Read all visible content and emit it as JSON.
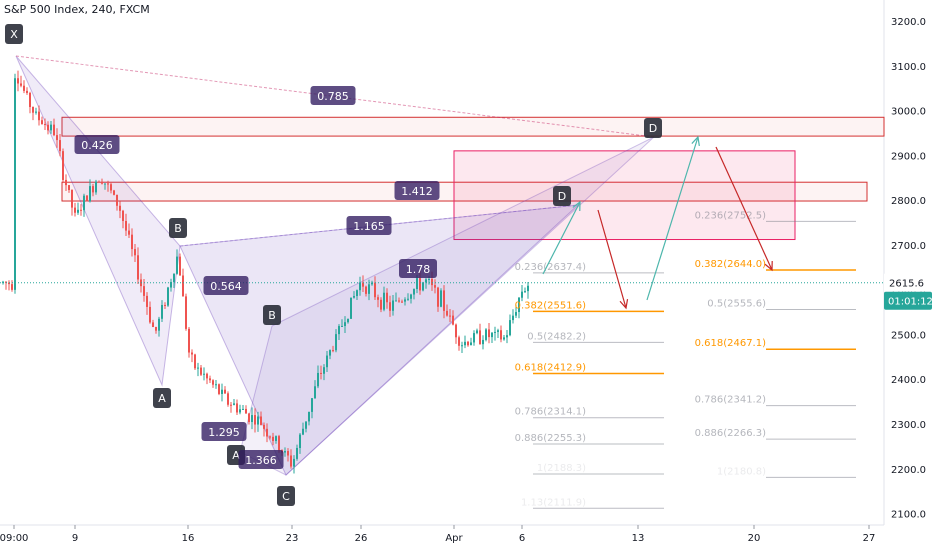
{
  "header": {
    "title": "S&P 500 Index, 240, FXCM"
  },
  "price_axis": {
    "ticks": [
      "3200.0",
      "3100.0",
      "3000.0",
      "2900.0",
      "2800.0",
      "2700.0",
      "2600.0",
      "2500.0",
      "2400.0",
      "2300.0",
      "2200.0",
      "2100.0"
    ],
    "current_price": "2615.6",
    "countdown": "01:01:12"
  },
  "time_axis": {
    "ticks": [
      "09:00",
      "9",
      "16",
      "23",
      "26",
      "Apr",
      "6",
      "13",
      "20",
      "27"
    ]
  },
  "colors": {
    "up": "#26a69a",
    "down": "#ef5350",
    "fib_orange": "#ff9800",
    "pattern_fill": "#673ab7",
    "zone_red": "#d32f2f",
    "arrow_up": "#4db6ac",
    "arrow_down": "#c62828"
  },
  "chart_data": {
    "type": "candlestick",
    "title": "S&P 500 Index, 240, FXCM",
    "ylim": [
      2100,
      3200
    ],
    "close_path": [
      {
        "x": "Mar 2",
        "y": 3090
      },
      {
        "x": "Mar 3",
        "y": 2990
      },
      {
        "x": "Mar 5",
        "y": 2950
      },
      {
        "x": "Mar 6",
        "y": 2870
      },
      {
        "x": "Mar 9",
        "y": 2760
      },
      {
        "x": "Mar 10",
        "y": 2860
      },
      {
        "x": "Mar 11",
        "y": 2780
      },
      {
        "x": "Mar 12",
        "y": 2500
      },
      {
        "x": "Mar 13",
        "y": 2680
      },
      {
        "x": "Mar 16",
        "y": 2440
      },
      {
        "x": "Mar 18",
        "y": 2350
      },
      {
        "x": "Mar 20",
        "y": 2300
      },
      {
        "x": "Mar 23",
        "y": 2210
      },
      {
        "x": "Mar 24",
        "y": 2400
      },
      {
        "x": "Mar 26",
        "y": 2620
      },
      {
        "x": "Mar 27",
        "y": 2560
      },
      {
        "x": "Mar 30",
        "y": 2620
      },
      {
        "x": "Mar 31",
        "y": 2580
      },
      {
        "x": "Apr 1",
        "y": 2480
      },
      {
        "x": "Apr 2",
        "y": 2500
      },
      {
        "x": "Apr 3",
        "y": 2490
      },
      {
        "x": "Apr 6",
        "y": 2600
      },
      {
        "x": "Apr 7",
        "y": 2615.6
      }
    ],
    "pattern_points": [
      {
        "label": "X"
      },
      {
        "label": "A"
      },
      {
        "label": "B"
      },
      {
        "label": "C"
      },
      {
        "label": "D"
      },
      {
        "label": "A"
      },
      {
        "label": "B"
      },
      {
        "label": "D"
      }
    ],
    "pattern_ratios": [
      "0.785",
      "0.426",
      "1.412",
      "1.165",
      "0.564",
      "1.78",
      "1.295",
      "1.366"
    ],
    "fib_left": [
      {
        "label": "0.236(2637.4)",
        "value": 2637.4
      },
      {
        "label": "0.382(2551.6)",
        "value": 2551.6,
        "highlight": true
      },
      {
        "label": "0.5(2482.2)",
        "value": 2482.2
      },
      {
        "label": "0.618(2412.9)",
        "value": 2412.9,
        "highlight": true
      },
      {
        "label": "0.786(2314.1)",
        "value": 2314.1
      },
      {
        "label": "0.886(2255.3)",
        "value": 2255.3
      },
      {
        "label": "1(2188.3)",
        "value": 2188.3
      },
      {
        "label": "1.13(2111.9)",
        "value": 2111.9
      }
    ],
    "fib_right": [
      {
        "label": "0.236(2752.5)",
        "value": 2752.5
      },
      {
        "label": "0.382(2644.0)",
        "value": 2644.0,
        "highlight": true
      },
      {
        "label": "0.5(2555.6)",
        "value": 2555.6
      },
      {
        "label": "0.618(2467.1)",
        "value": 2467.1,
        "highlight": true
      },
      {
        "label": "0.786(2341.2)",
        "value": 2341.2
      },
      {
        "label": "0.886(2266.3)",
        "value": 2266.3
      },
      {
        "label": "1(2180.8)",
        "value": 2180.8
      }
    ],
    "zones": [
      {
        "name": "upper-d-zone",
        "from": 2943,
        "to": 2985
      },
      {
        "name": "middle-d-zone",
        "from": 2798,
        "to": 2840
      },
      {
        "name": "target-box",
        "from": 2712,
        "to": 2910
      }
    ]
  }
}
